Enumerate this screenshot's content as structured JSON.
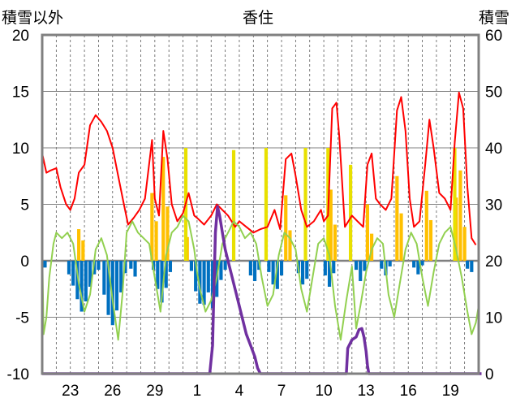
{
  "chart_data": {
    "type": "combo",
    "title": "香住",
    "ylabel_left": "積雪以外",
    "ylabel_right": "積雪",
    "ylim_left": [
      -10,
      20
    ],
    "ylim_right": [
      0,
      60
    ],
    "yticks_left": [
      "20",
      "15",
      "10",
      "5",
      "0",
      "-5",
      "-10"
    ],
    "yticks_right": [
      "60",
      "50",
      "40",
      "30",
      "20",
      "10",
      "0"
    ],
    "xticks": [
      "23",
      "26",
      "29",
      "1",
      "4",
      "7",
      "10",
      "13",
      "16",
      "19"
    ],
    "x_range_days": [
      21,
      52
    ],
    "grid": "vertical dashed daily, horizontal solid every 5",
    "colors": {
      "red_line": "#ff0000",
      "green_line": "#92d050",
      "blue_bars": "#0070c0",
      "orange_bars": "#ffc000",
      "yellow_bars": "#e8e000",
      "purple_line": "#7030a0",
      "zero_line": "#808080",
      "frame": "#808080"
    },
    "series": [
      {
        "key": "red_line",
        "axis": "left",
        "style": "line",
        "points": [
          [
            21,
            9.5
          ],
          [
            21.3,
            7.8
          ],
          [
            21.6,
            8.0
          ],
          [
            22,
            8.2
          ],
          [
            22.3,
            6.5
          ],
          [
            22.7,
            5.0
          ],
          [
            23,
            4.5
          ],
          [
            23.3,
            5.5
          ],
          [
            23.6,
            7.8
          ],
          [
            24,
            8.5
          ],
          [
            24.4,
            12.0
          ],
          [
            24.8,
            12.9
          ],
          [
            25.2,
            12.3
          ],
          [
            25.6,
            11.5
          ],
          [
            26,
            10.0
          ],
          [
            26.4,
            7.5
          ],
          [
            26.8,
            5.0
          ],
          [
            27.1,
            3.2
          ],
          [
            27.5,
            3.8
          ],
          [
            27.9,
            4.5
          ],
          [
            28.3,
            5.5
          ],
          [
            28.8,
            10.7
          ],
          [
            29.0,
            5.5
          ],
          [
            29.3,
            4.0
          ],
          [
            29.6,
            11.5
          ],
          [
            29.9,
            9.0
          ],
          [
            30.2,
            5.0
          ],
          [
            30.6,
            3.5
          ],
          [
            31,
            4.2
          ],
          [
            31.4,
            6.0
          ],
          [
            31.8,
            4.0
          ],
          [
            32,
            3.8
          ],
          [
            32.5,
            3.2
          ],
          [
            33,
            4.0
          ],
          [
            33.4,
            5.0
          ],
          [
            33.8,
            4.5
          ],
          [
            34.2,
            4.0
          ],
          [
            34.7,
            3.0
          ],
          [
            35,
            3.5
          ],
          [
            35.5,
            3.0
          ],
          [
            36,
            2.5
          ],
          [
            36.5,
            2.8
          ],
          [
            37,
            3.0
          ],
          [
            37.5,
            4.5
          ],
          [
            37.9,
            2.8
          ],
          [
            38.3,
            9.0
          ],
          [
            38.7,
            9.5
          ],
          [
            39,
            7.5
          ],
          [
            39.4,
            4.5
          ],
          [
            39.8,
            3.0
          ],
          [
            40.3,
            3.5
          ],
          [
            40.8,
            4.5
          ],
          [
            41,
            3.5
          ],
          [
            41.3,
            4.0
          ],
          [
            41.6,
            13.5
          ],
          [
            41.9,
            14.0
          ],
          [
            42.1,
            11.0
          ],
          [
            42.5,
            3.0
          ],
          [
            43,
            4.0
          ],
          [
            43.4,
            3.5
          ],
          [
            43.8,
            3.0
          ],
          [
            44.1,
            8.5
          ],
          [
            44.4,
            9.5
          ],
          [
            44.7,
            5.5
          ],
          [
            45,
            5.0
          ],
          [
            45.4,
            4.5
          ],
          [
            45.8,
            5.5
          ],
          [
            46.2,
            13.3
          ],
          [
            46.5,
            14.5
          ],
          [
            46.8,
            11.5
          ],
          [
            47.1,
            5.5
          ],
          [
            47.4,
            3.0
          ],
          [
            47.8,
            3.5
          ],
          [
            48.2,
            8.5
          ],
          [
            48.5,
            12.5
          ],
          [
            48.8,
            10.0
          ],
          [
            49.2,
            6.0
          ],
          [
            49.6,
            5.5
          ],
          [
            50,
            4.5
          ],
          [
            50.3,
            10.5
          ],
          [
            50.6,
            14.9
          ],
          [
            50.9,
            13.5
          ],
          [
            51.2,
            6.5
          ],
          [
            51.5,
            2.0
          ],
          [
            51.8,
            1.4
          ]
        ]
      },
      {
        "key": "green_line",
        "axis": "left",
        "style": "line",
        "points": [
          [
            21,
            1.5
          ],
          [
            21.1,
            -6.5
          ],
          [
            21.3,
            -5.0
          ],
          [
            21.5,
            -1.5
          ],
          [
            21.8,
            1.5
          ],
          [
            22,
            2.5
          ],
          [
            22.4,
            2.0
          ],
          [
            22.8,
            2.5
          ],
          [
            23.2,
            1.5
          ],
          [
            23.6,
            -2.0
          ],
          [
            24,
            -4.5
          ],
          [
            24.4,
            -3.0
          ],
          [
            24.8,
            1.0
          ],
          [
            25.2,
            2.0
          ],
          [
            25.6,
            0.5
          ],
          [
            26,
            -3.5
          ],
          [
            26.4,
            -7.0
          ],
          [
            26.7,
            -3.0
          ],
          [
            27,
            2.5
          ],
          [
            27.4,
            3.5
          ],
          [
            27.8,
            2.5
          ],
          [
            28.2,
            2.0
          ],
          [
            28.6,
            1.5
          ],
          [
            29,
            -1.5
          ],
          [
            29.4,
            -4.5
          ],
          [
            29.8,
            0.5
          ],
          [
            30.2,
            2.5
          ],
          [
            30.6,
            3.0
          ],
          [
            31,
            4.0
          ],
          [
            31.4,
            3.5
          ],
          [
            31.8,
            1.0
          ],
          [
            32,
            -1.0
          ],
          [
            32.2,
            -2.5
          ],
          [
            32.6,
            -4.5
          ],
          [
            33.0,
            -3.5
          ],
          [
            33.4,
            -1.5
          ],
          [
            33.8,
            1.5
          ],
          [
            34.2,
            2.5
          ],
          [
            34.6,
            3.5
          ],
          [
            35,
            3.0
          ],
          [
            35.4,
            2.0
          ],
          [
            35.8,
            2.5
          ],
          [
            36.2,
            1.5
          ],
          [
            36.6,
            -1.5
          ],
          [
            37,
            -4.0
          ],
          [
            37.4,
            -3.0
          ],
          [
            37.8,
            0.5
          ],
          [
            38.2,
            2.5
          ],
          [
            38.6,
            2.0
          ],
          [
            39,
            1.0
          ],
          [
            39.4,
            -2.5
          ],
          [
            39.8,
            -4.5
          ],
          [
            40.2,
            -1.5
          ],
          [
            40.6,
            1.5
          ],
          [
            41,
            2.0
          ],
          [
            41.4,
            0.5
          ],
          [
            41.8,
            -4.0
          ],
          [
            42.2,
            -7.0
          ],
          [
            42.6,
            -3.5
          ],
          [
            43,
            -0.5
          ],
          [
            43.3,
            -6.0
          ],
          [
            43.6,
            -4.0
          ],
          [
            44,
            -1.0
          ],
          [
            44.4,
            1.0
          ],
          [
            44.8,
            2.0
          ],
          [
            45.2,
            1.5
          ],
          [
            45.6,
            -3.0
          ],
          [
            46,
            -5.0
          ],
          [
            46.4,
            -2.0
          ],
          [
            46.8,
            1.0
          ],
          [
            47.2,
            2.5
          ],
          [
            47.6,
            1.5
          ],
          [
            48,
            -1.5
          ],
          [
            48.4,
            -4.0
          ],
          [
            48.8,
            -1.0
          ],
          [
            49.2,
            1.5
          ],
          [
            49.6,
            2.5
          ],
          [
            50,
            3.0
          ],
          [
            50.4,
            1.0
          ],
          [
            50.8,
            -1.5
          ],
          [
            51.2,
            -4.5
          ],
          [
            51.5,
            -6.5
          ],
          [
            51.8,
            -5.5
          ],
          [
            52,
            -4.0
          ]
        ]
      },
      {
        "key": "blue_bars",
        "axis": "left",
        "style": "bars",
        "points": [
          [
            21.2,
            -0.6
          ],
          [
            22.9,
            -1.2
          ],
          [
            23.2,
            -2.2
          ],
          [
            23.5,
            -3.4
          ],
          [
            23.8,
            -4.5
          ],
          [
            24.1,
            -3.6
          ],
          [
            24.4,
            -2.3
          ],
          [
            24.7,
            -1.2
          ],
          [
            25.0,
            -0.8
          ],
          [
            25.4,
            -3.0
          ],
          [
            25.7,
            -4.8
          ],
          [
            26.0,
            -5.7
          ],
          [
            26.3,
            -4.4
          ],
          [
            26.6,
            -2.8
          ],
          [
            26.9,
            -1.1
          ],
          [
            27.3,
            -0.7
          ],
          [
            27.6,
            -1.4
          ],
          [
            28.9,
            -0.8
          ],
          [
            29.2,
            -2.5
          ],
          [
            29.5,
            -3.7
          ],
          [
            29.8,
            -2.4
          ],
          [
            30.1,
            -1.0
          ],
          [
            31.6,
            -0.9
          ],
          [
            31.9,
            -2.7
          ],
          [
            32.2,
            -3.8
          ],
          [
            32.5,
            -3.9
          ],
          [
            32.8,
            -2.8
          ],
          [
            33.1,
            -4.2
          ],
          [
            33.4,
            -3.2
          ],
          [
            33.7,
            -1.7
          ],
          [
            34.0,
            -0.8
          ],
          [
            35.8,
            -1.3
          ],
          [
            36.1,
            -1.8
          ],
          [
            36.4,
            -0.8
          ],
          [
            37.1,
            -1.0
          ],
          [
            37.4,
            -2.1
          ],
          [
            37.7,
            -2.5
          ],
          [
            38.0,
            -1.3
          ],
          [
            39.2,
            -1.1
          ],
          [
            39.5,
            -2.1
          ],
          [
            39.8,
            -1.6
          ],
          [
            41.1,
            -1.3
          ],
          [
            41.4,
            -2.3
          ],
          [
            41.7,
            -1.1
          ],
          [
            43.3,
            -0.8
          ],
          [
            43.6,
            -1.8
          ],
          [
            43.9,
            -0.9
          ],
          [
            45.1,
            -0.7
          ],
          [
            45.4,
            -1.3
          ],
          [
            45.7,
            -0.5
          ],
          [
            47.4,
            -0.6
          ],
          [
            47.7,
            -1.2
          ],
          [
            48.0,
            -0.4
          ],
          [
            51.2,
            -0.7
          ],
          [
            51.5,
            -1.0
          ]
        ]
      },
      {
        "key": "orange_bars",
        "axis": "left",
        "style": "bars",
        "points": [
          [
            23.6,
            2.8
          ],
          [
            23.9,
            1.8
          ],
          [
            28.8,
            6.0
          ],
          [
            29.1,
            3.5
          ],
          [
            29.6,
            9.2
          ],
          [
            29.9,
            4.8
          ],
          [
            31.3,
            2.1
          ],
          [
            38.3,
            5.8
          ],
          [
            38.6,
            2.7
          ],
          [
            41.5,
            6.3
          ],
          [
            41.8,
            3.2
          ],
          [
            44.1,
            5.0
          ],
          [
            44.4,
            2.4
          ],
          [
            46.2,
            7.5
          ],
          [
            46.5,
            4.2
          ],
          [
            48.3,
            6.2
          ],
          [
            48.6,
            3.6
          ],
          [
            50.4,
            5.6
          ],
          [
            50.7,
            8.0
          ],
          [
            51.0,
            3.0
          ]
        ]
      },
      {
        "key": "yellow_bars",
        "axis": "left",
        "style": "bars",
        "points": [
          [
            31.2,
            10.0
          ],
          [
            34.6,
            9.8
          ],
          [
            36.9,
            10.0
          ],
          [
            39.7,
            10.0
          ],
          [
            41.3,
            10.0
          ],
          [
            42.9,
            8.5
          ],
          [
            50.3,
            10.0
          ]
        ]
      },
      {
        "key": "purple_line",
        "axis": "right",
        "style": "line",
        "points": [
          [
            21,
            0
          ],
          [
            32.9,
            0
          ],
          [
            33.1,
            5
          ],
          [
            33.2,
            15
          ],
          [
            33.3,
            25
          ],
          [
            33.45,
            29.6
          ],
          [
            33.6,
            28
          ],
          [
            33.8,
            25
          ],
          [
            34.0,
            22
          ],
          [
            34.3,
            19
          ],
          [
            34.6,
            16
          ],
          [
            34.9,
            13
          ],
          [
            35.2,
            10
          ],
          [
            35.5,
            7
          ],
          [
            35.8,
            5
          ],
          [
            36.1,
            3
          ],
          [
            36.3,
            1
          ],
          [
            36.5,
            0
          ],
          [
            42.5,
            0
          ],
          [
            42.6,
            0
          ],
          [
            42.7,
            4.5
          ],
          [
            43.0,
            6.0
          ],
          [
            43.3,
            6.5
          ],
          [
            43.5,
            7.8
          ],
          [
            43.7,
            8.0
          ],
          [
            43.85,
            6.5
          ],
          [
            44.0,
            4.0
          ],
          [
            44.1,
            1.5
          ],
          [
            44.2,
            0
          ],
          [
            52.2,
            0
          ]
        ]
      }
    ]
  }
}
